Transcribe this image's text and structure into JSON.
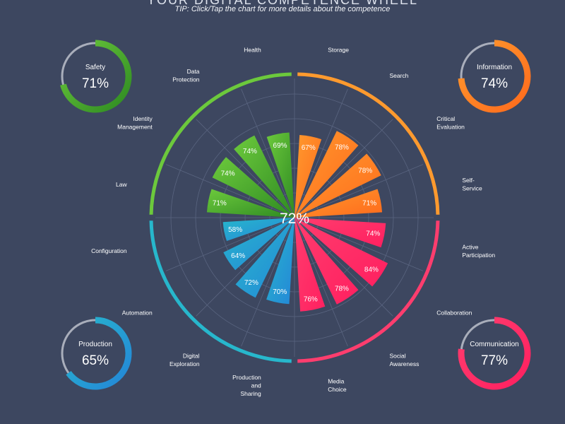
{
  "header": {
    "title": "YOUR DIGITAL COMPETENCE WHEEL",
    "tip": "TIP: Click/Tap the chart for more details about the competence"
  },
  "colors": {
    "background": "#3d4760",
    "grid": "#5a6580",
    "information": "#ff9a2e",
    "communication": "#ff3d6e",
    "production": "#27b7cc",
    "safety": "#6cc93c"
  },
  "chart_data": {
    "type": "polar-bar",
    "center_value": "72%",
    "max": 100,
    "areas": [
      {
        "name": "Information",
        "value": "74%",
        "percent": 74,
        "color": "#ff9a2e",
        "color_dark": "#ff6a1c",
        "position": "top-right"
      },
      {
        "name": "Communication",
        "value": "77%",
        "percent": 77,
        "color": "#ff3d6e",
        "color_dark": "#ff2060",
        "position": "bottom-right"
      },
      {
        "name": "Production",
        "value": "65%",
        "percent": 65,
        "color": "#27b7cc",
        "color_dark": "#2486d8",
        "position": "bottom-left"
      },
      {
        "name": "Safety",
        "value": "71%",
        "percent": 71,
        "color": "#6cc93c",
        "color_dark": "#2e8a22",
        "position": "top-left"
      }
    ],
    "competences": [
      {
        "label": [
          "Storage"
        ],
        "value": 67,
        "area": 0
      },
      {
        "label": [
          "Search"
        ],
        "value": 78,
        "area": 0
      },
      {
        "label": [
          "Critical",
          "Evaluation"
        ],
        "value": 78,
        "area": 0
      },
      {
        "label": [
          "Self-",
          "Service"
        ],
        "value": 71,
        "area": 0
      },
      {
        "label": [
          "Active",
          "Participation"
        ],
        "value": 74,
        "area": 1
      },
      {
        "label": [
          "Collaboration"
        ],
        "value": 84,
        "area": 1
      },
      {
        "label": [
          "Social",
          "Awareness"
        ],
        "value": 78,
        "area": 1
      },
      {
        "label": [
          "Media",
          "Choice"
        ],
        "value": 76,
        "area": 1
      },
      {
        "label": [
          "Production",
          "and",
          "Sharing"
        ],
        "value": 70,
        "area": 2
      },
      {
        "label": [
          "Digital",
          "Exploration"
        ],
        "value": 72,
        "area": 2
      },
      {
        "label": [
          "Automation"
        ],
        "value": 64,
        "area": 2
      },
      {
        "label": [
          "Configuration"
        ],
        "value": 58,
        "area": 2
      },
      {
        "label": [
          "Law"
        ],
        "value": 71,
        "area": 3
      },
      {
        "label": [
          "Identity",
          "Management"
        ],
        "value": 74,
        "area": 3
      },
      {
        "label": [
          "Data",
          "Protection"
        ],
        "value": 74,
        "area": 3
      },
      {
        "label": [
          "Health"
        ],
        "value": 69,
        "area": 3
      }
    ]
  }
}
